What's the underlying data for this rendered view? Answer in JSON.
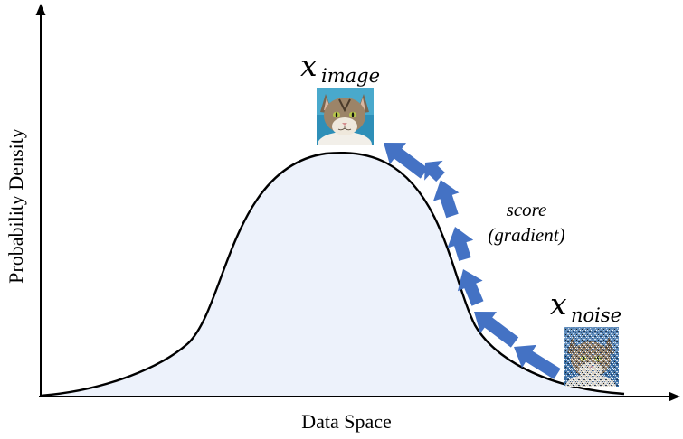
{
  "axes": {
    "xlabel": "Data Space",
    "ylabel": "Probability Density"
  },
  "curve": {
    "fill": "#edf2fb",
    "stroke": "#000000"
  },
  "labels": {
    "image_base": "x",
    "image_sub": "image",
    "noise_base": "x",
    "noise_sub": "noise",
    "score_line1": "score",
    "score_line2": "(gradient)"
  },
  "arrows": {
    "color": "#4472c4",
    "count": 7
  },
  "images": {
    "clean": "cat-photo",
    "noisy": "noisy-cat-photo"
  }
}
